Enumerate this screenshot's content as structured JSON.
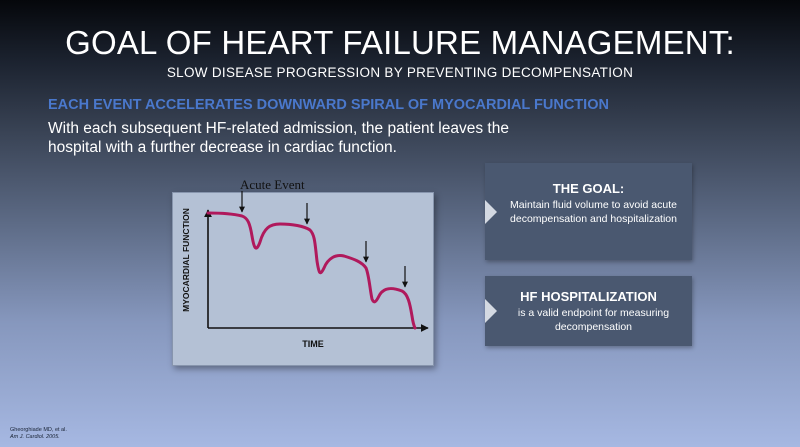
{
  "title": "GOAL OF HEART FAILURE MANAGEMENT:",
  "subtitle": "SLOW DISEASE PROGRESSION BY PREVENTING DECOMPENSATION",
  "heading": "EACH EVENT ACCELERATES DOWNWARD SPIRAL OF MYOCARDIAL FUNCTION",
  "body_text": "With each subsequent HF-related admission, the patient leaves the hospital with a further decrease in cardiac function.",
  "diagram": {
    "event_label": "Acute Event",
    "ylabel": "MYOCARDIAL FUNCTION",
    "xlabel": "TIME",
    "curve_color": "#b0195c"
  },
  "goal_box": {
    "title": "THE GOAL:",
    "text": "Maintain fluid volume to avoid acute decompensation and hospitalization"
  },
  "hosp_box": {
    "title": "HF HOSPITALIZATION",
    "text": "is a valid endpoint for measuring decompensation"
  },
  "citation": {
    "author": "Gheorghiade MD, et al.",
    "journal": "Am J. Cardiol. 2005."
  }
}
